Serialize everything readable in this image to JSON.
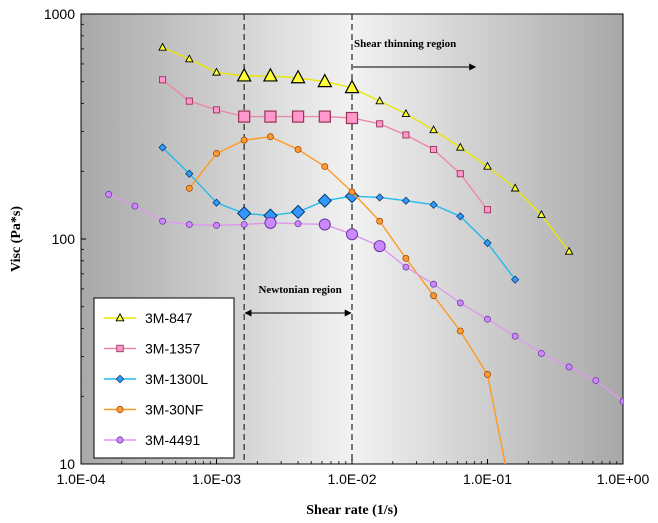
{
  "chart_data": {
    "type": "line",
    "x_scale": "log",
    "y_scale": "log",
    "xlabel": "Shear rate (1/s)",
    "ylabel": "Visc (Pa*s)",
    "xlim": [
      0.0001,
      1
    ],
    "ylim": [
      10,
      1000
    ],
    "x_ticks": [
      {
        "value": 0.0001,
        "label": "1.0E-04"
      },
      {
        "value": 0.001,
        "label": "1.0E-03"
      },
      {
        "value": 0.01,
        "label": "1.0E-02"
      },
      {
        "value": 0.1,
        "label": "1.0E-01"
      },
      {
        "value": 1,
        "label": "1.0E+00"
      }
    ],
    "y_ticks": [
      {
        "value": 10,
        "label": "10"
      },
      {
        "value": 100,
        "label": "100"
      },
      {
        "value": 1000,
        "label": "1000"
      }
    ],
    "grid": false,
    "legend_position": "bottom-left",
    "annotations": [
      {
        "text": "Shear thinning region"
      },
      {
        "text": "Newtonian region"
      }
    ],
    "reference_lines_x": [
      0.0016,
      0.01
    ],
    "newtonian_arrow": [
      0.0016,
      0.01
    ],
    "shear_thinning_arrow": [
      0.01,
      0.1
    ],
    "series": [
      {
        "name": "3M-847",
        "marker": "triangle",
        "line_color": "#e8e800",
        "fill_color": "#ffff33",
        "x": [
          0.0004,
          0.00063,
          0.001,
          0.0016,
          0.0025,
          0.004,
          0.0063,
          0.01,
          0.016,
          0.025,
          0.04,
          0.063,
          0.1,
          0.16,
          0.25,
          0.4
        ],
        "y": [
          710,
          630,
          550,
          530,
          530,
          520,
          500,
          470,
          410,
          360,
          305,
          255,
          210,
          168,
          128,
          88
        ],
        "large_index": [
          3,
          4,
          5,
          6,
          7
        ]
      },
      {
        "name": "3M-1357",
        "marker": "square",
        "line_color": "#ee88aa",
        "fill_color": "#ff99cc",
        "x": [
          0.0004,
          0.00063,
          0.001,
          0.0016,
          0.0025,
          0.004,
          0.0063,
          0.01,
          0.016,
          0.025,
          0.04,
          0.063,
          0.1
        ],
        "y": [
          510,
          410,
          375,
          350,
          350,
          350,
          350,
          345,
          325,
          290,
          250,
          195,
          135
        ],
        "large_index": [
          3,
          4,
          5,
          6,
          7
        ]
      },
      {
        "name": "3M-1300L",
        "marker": "diamond",
        "line_color": "#22bbee",
        "fill_color": "#3399ff",
        "x": [
          0.0004,
          0.00063,
          0.001,
          0.0016,
          0.0025,
          0.004,
          0.0063,
          0.01,
          0.016,
          0.025,
          0.04,
          0.063,
          0.1,
          0.16
        ],
        "y": [
          255,
          195,
          145,
          130,
          127,
          132,
          148,
          155,
          153,
          148,
          142,
          126,
          96,
          66
        ],
        "large_index": [
          3,
          4,
          5,
          6,
          7
        ]
      },
      {
        "name": "3M-30NF",
        "marker": "circle",
        "line_color": "#ff9922",
        "fill_color": "#ff9933",
        "x": [
          0.00063,
          0.001,
          0.0016,
          0.0025,
          0.004,
          0.0063,
          0.01,
          0.016,
          0.025,
          0.04,
          0.063,
          0.1,
          0.17
        ],
        "y": [
          168,
          240,
          275,
          285,
          250,
          210,
          162,
          120,
          82,
          56,
          39,
          25,
          5
        ],
        "large_index": [],
        "no_marker_index": [
          12
        ]
      },
      {
        "name": "3M-4491",
        "marker": "circle",
        "line_color": "#dd99ee",
        "fill_color": "#cc88ff",
        "x": [
          0.00016,
          0.00025,
          0.0004,
          0.00063,
          0.001,
          0.0016,
          0.0025,
          0.004,
          0.0063,
          0.01,
          0.016,
          0.025,
          0.04,
          0.063,
          0.1,
          0.16,
          0.25,
          0.4,
          0.63,
          1
        ],
        "y": [
          158,
          140,
          120,
          116,
          115,
          116,
          118,
          117,
          116,
          105,
          93,
          75,
          63,
          52,
          44,
          37,
          31,
          27,
          23.5,
          19
        ],
        "large_index": [
          6,
          8,
          9,
          10
        ]
      }
    ]
  }
}
